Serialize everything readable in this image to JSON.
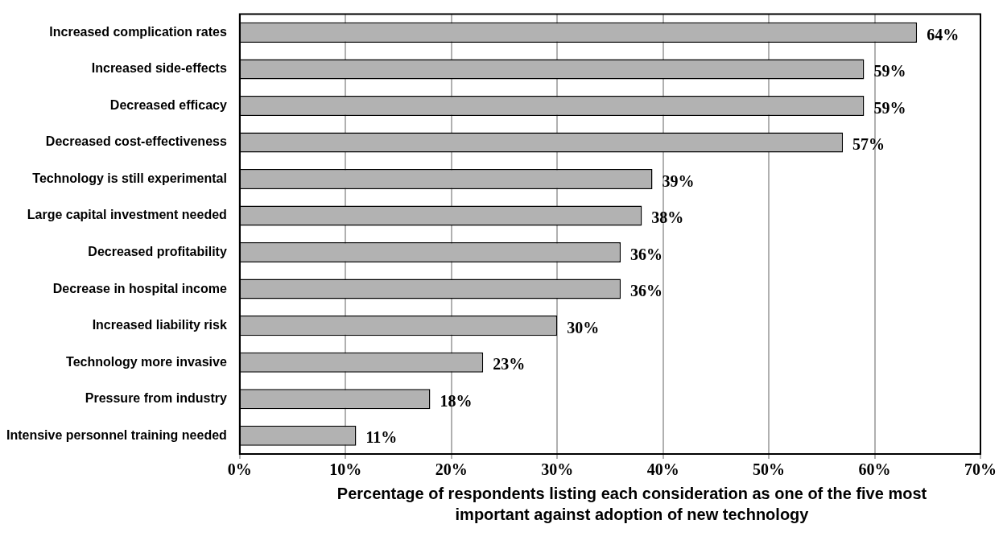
{
  "chart_data": {
    "type": "bar",
    "orientation": "horizontal",
    "xlabel": "Percentage of respondents listing each consideration as one of the five most important against adoption of new technology",
    "categories": [
      "Increased complication rates",
      "Increased side-effects",
      "Decreased efficacy",
      "Decreased cost-effectiveness",
      "Technology is still experimental",
      "Large capital investment needed",
      "Decreased profitability",
      "Decrease in hospital income",
      "Increased liability risk",
      "Technology more invasive",
      "Pressure from industry",
      "Intensive personnel training needed"
    ],
    "values": [
      64,
      59,
      59,
      57,
      39,
      38,
      36,
      36,
      30,
      23,
      18,
      11
    ],
    "value_labels": [
      "64%",
      "59%",
      "59%",
      "57%",
      "39%",
      "38%",
      "36%",
      "36%",
      "30%",
      "23%",
      "18%",
      "11%"
    ],
    "color": "#b2b2b2",
    "xlim": [
      0,
      70
    ],
    "xticks": [
      {
        "value": 0,
        "label": "0%"
      },
      {
        "value": 10,
        "label": "10%"
      },
      {
        "value": 20,
        "label": "20%"
      },
      {
        "value": 30,
        "label": "30%"
      },
      {
        "value": 40,
        "label": "40%"
      },
      {
        "value": 50,
        "label": "50%"
      },
      {
        "value": 60,
        "label": "60%"
      },
      {
        "value": 70,
        "label": "70%"
      }
    ],
    "grid": "x",
    "legend": false
  }
}
